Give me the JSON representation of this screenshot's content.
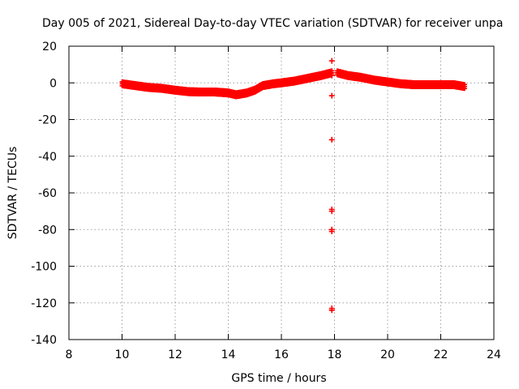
{
  "chart_data": {
    "type": "scatter",
    "title": "Day 005 of 2021, Sidereal Day-to-day VTEC variation (SDTVAR) for receiver unpa",
    "xlabel": "GPS time / hours",
    "ylabel": "SDTVAR / TECUs",
    "xlim": [
      8,
      24
    ],
    "ylim": [
      -140,
      20
    ],
    "xticks": [
      8,
      10,
      12,
      14,
      16,
      18,
      20,
      22,
      24
    ],
    "yticks": [
      20,
      0,
      -20,
      -40,
      -60,
      -80,
      -100,
      -120,
      -140
    ],
    "grid": true,
    "marker": "+",
    "series_color": "#ff0000",
    "series": [
      {
        "name": "SDTVAR",
        "band": [
          [
            10.0,
            -0.5
          ],
          [
            10.5,
            -1.5
          ],
          [
            11.0,
            -2.5
          ],
          [
            11.5,
            -3.0
          ],
          [
            12.0,
            -4.0
          ],
          [
            12.5,
            -4.8
          ],
          [
            13.0,
            -5.0
          ],
          [
            13.5,
            -5.0
          ],
          [
            14.0,
            -5.5
          ],
          [
            14.3,
            -6.5
          ],
          [
            14.7,
            -5.5
          ],
          [
            15.0,
            -4.0
          ],
          [
            15.3,
            -1.5
          ],
          [
            15.7,
            -0.5
          ],
          [
            16.0,
            0.0
          ],
          [
            16.5,
            1.0
          ],
          [
            17.0,
            2.5
          ],
          [
            17.5,
            4.0
          ],
          [
            17.9,
            5.5
          ],
          [
            18.1,
            5.5
          ],
          [
            18.5,
            4.0
          ],
          [
            19.0,
            3.0
          ],
          [
            19.5,
            1.5
          ],
          [
            20.0,
            0.5
          ],
          [
            20.5,
            -0.5
          ],
          [
            21.0,
            -1.0
          ],
          [
            21.5,
            -1.0
          ],
          [
            22.0,
            -1.0
          ],
          [
            22.5,
            -1.0
          ],
          [
            22.9,
            -2.0
          ]
        ],
        "outliers": [
          [
            17.9,
            12
          ],
          [
            17.9,
            4
          ],
          [
            17.9,
            -7
          ],
          [
            17.9,
            -31
          ],
          [
            17.9,
            -69
          ],
          [
            17.9,
            -70
          ],
          [
            17.9,
            -80
          ],
          [
            17.9,
            -81
          ],
          [
            17.9,
            -124
          ],
          [
            17.9,
            -123
          ]
        ]
      }
    ]
  }
}
